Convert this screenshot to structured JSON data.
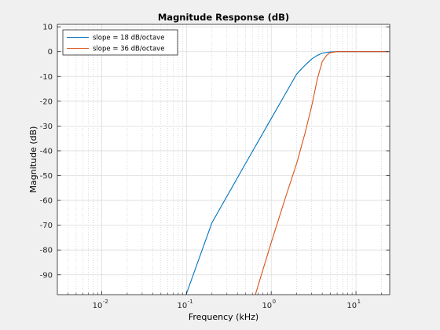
{
  "chart_data": {
    "type": "line",
    "title": "Magnitude Response (dB)",
    "xlabel": "Frequency (kHz)",
    "ylabel": "Magnitude (dB)",
    "xscale": "log",
    "xlim": [
      0.003,
      25
    ],
    "ylim": [
      -98,
      11
    ],
    "grid": true,
    "minor_grid": true,
    "legend_position": "top-left",
    "x_ticks": [
      {
        "value": 0.01,
        "base": "10",
        "exp": "-2"
      },
      {
        "value": 0.1,
        "base": "10",
        "exp": "-1"
      },
      {
        "value": 1,
        "base": "10",
        "exp": "0"
      },
      {
        "value": 10,
        "base": "10",
        "exp": "1"
      }
    ],
    "y_ticks": [
      10,
      0,
      -10,
      -20,
      -30,
      -40,
      -50,
      -60,
      -70,
      -80,
      -90
    ],
    "y_tick_labels": [
      "10",
      "0",
      "-10",
      "-20",
      "-30",
      "-40",
      "-50",
      "-60",
      "-70",
      "-80",
      "-90"
    ],
    "series": [
      {
        "name": "slope = 18 dB/octave",
        "color": "#0072bd",
        "x": [
          0.099,
          0.2,
          0.5,
          1.0,
          2.0,
          2.5,
          3.0,
          3.5,
          4.0,
          5.0,
          6.0,
          8.0,
          24.0
        ],
        "y": [
          -98,
          -69,
          -45,
          -27,
          -9,
          -5.5,
          -3,
          -1.5,
          -0.6,
          -0.1,
          0,
          0,
          0
        ]
      },
      {
        "name": "slope = 36 dB/octave",
        "color": "#d95319",
        "x": [
          0.65,
          1.0,
          1.5,
          2.0,
          2.5,
          3.0,
          3.5,
          4.0,
          4.5,
          5.0,
          6.0,
          8.0,
          24.0
        ],
        "y": [
          -98,
          -77,
          -58,
          -45,
          -33,
          -22,
          -11,
          -4,
          -1.5,
          -0.4,
          0,
          0,
          0
        ]
      }
    ]
  }
}
